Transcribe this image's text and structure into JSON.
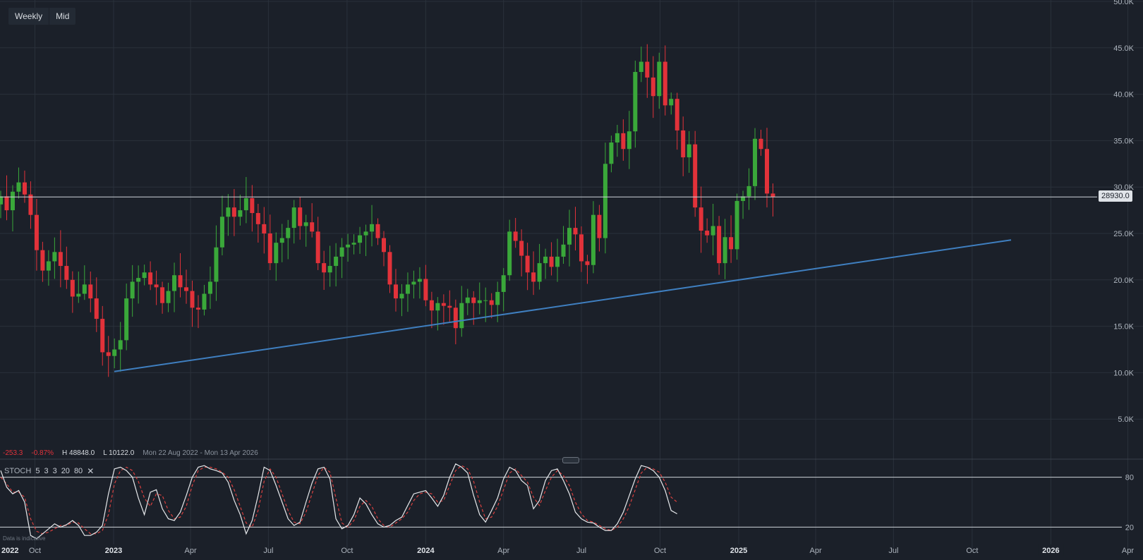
{
  "toolbar": {
    "interval_label": "Weekly",
    "price_type_label": "Mid"
  },
  "stats": {
    "change": "-253.3",
    "change_pct": "-0.87%",
    "high": "H 48848.0",
    "low": "L 10122.0",
    "range": "Mon 22 Aug 2022 - Mon 13 Apr 2026"
  },
  "current_price_label": "28930.0",
  "stoch": {
    "name": "STOCH",
    "params": [
      "5",
      "3",
      "3",
      "20",
      "80"
    ],
    "close_glyph": "✕"
  },
  "disclaimer": "Data is indicative",
  "colors": {
    "background": "#1b2029",
    "grid": "#2a313b",
    "up": "#3aa83a",
    "down": "#e2323a",
    "trendline": "#3f7fc0",
    "price_line": "#cfd4da",
    "stoch_k": "#e6e8eb",
    "stoch_d": "#d9403f"
  },
  "chart_data": [
    {
      "type": "candlestick",
      "title": "",
      "interval": "Weekly",
      "y_range": [
        0,
        50000
      ],
      "y_ticks": [
        "5.0K",
        "10.0K",
        "15.0K",
        "20.0K",
        "25.0K",
        "30.0K",
        "35.0K",
        "40.0K",
        "45.0K",
        "50.0K"
      ],
      "y_tick_values": [
        5000,
        10000,
        15000,
        20000,
        25000,
        30000,
        35000,
        40000,
        45000,
        50000
      ],
      "x_ticks": [
        "2022",
        "Oct",
        "2023",
        "Apr",
        "Jul",
        "Oct",
        "2024",
        "Apr",
        "Jul",
        "Oct",
        "2025",
        "Apr",
        "Jul",
        "Oct",
        "2026",
        "Apr"
      ],
      "x_tick_dates": [
        "2022-07-01",
        "2022-10-01",
        "2023-01-01",
        "2023-04-01",
        "2023-07-01",
        "2023-10-01",
        "2024-01-01",
        "2024-04-01",
        "2024-07-01",
        "2024-10-01",
        "2025-01-01",
        "2025-04-01",
        "2025-07-01",
        "2025-10-01",
        "2026-01-01",
        "2026-04-01"
      ],
      "x_range": [
        "2022-08-22",
        "2026-04-13"
      ],
      "current_price": 28930,
      "close_series": [
        29000,
        27500,
        29500,
        30500,
        29200,
        27000,
        23200,
        21000,
        22000,
        23000,
        21500,
        20000,
        18200,
        18500,
        19500,
        18000,
        15800,
        12200,
        11800,
        12500,
        13500,
        18000,
        19800,
        20200,
        20800,
        19500,
        19200,
        17500,
        18800,
        20500,
        19200,
        18800,
        17000,
        16800,
        18500,
        19800,
        23500,
        26800,
        27800,
        26800,
        27500,
        28800,
        27200,
        26000,
        25000,
        21800,
        24000,
        24500,
        25600,
        27800,
        25800,
        26200,
        25200,
        21800,
        20800,
        21500,
        22500,
        23500,
        23800,
        24000,
        24800,
        25200,
        26000,
        24500,
        23000,
        19500,
        18000,
        18500,
        19500,
        19800,
        20100,
        17800,
        16700,
        17500,
        17200,
        17000,
        14800,
        17500,
        18100,
        17500,
        17800,
        17800,
        17300,
        18700,
        20500,
        25200,
        24200,
        22600,
        20800,
        19800,
        21800,
        22500,
        21400,
        22500,
        23800,
        25600,
        24900,
        22000,
        21600,
        27000,
        24500,
        32500,
        34800,
        35800,
        34100,
        36000,
        42400,
        43500,
        41800,
        39800,
        43500,
        38800,
        39500,
        36100,
        33200,
        34600,
        27800,
        25300,
        24800,
        25800,
        21800,
        24600,
        23300,
        28500,
        29000,
        30100,
        35200,
        34100,
        29300,
        28930
      ],
      "series": [
        {
          "name": "STOCH %K (5,3)",
          "values": [
            88,
            68,
            60,
            64,
            50,
            10,
            6,
            12,
            18,
            24,
            20,
            23,
            28,
            22,
            10,
            10,
            14,
            22,
            60,
            90,
            92,
            88,
            80,
            55,
            35,
            62,
            65,
            42,
            30,
            28,
            38,
            58,
            80,
            92,
            94,
            90,
            88,
            85,
            74,
            52,
            35,
            12,
            28,
            58,
            92,
            88,
            70,
            50,
            30,
            22,
            26,
            50,
            73,
            90,
            92,
            78,
            30,
            18,
            22,
            35,
            55,
            48,
            35,
            24,
            20,
            22,
            28,
            32,
            46,
            60,
            62,
            64,
            55,
            45,
            58,
            80,
            96,
            92,
            85,
            58,
            35,
            26,
            40,
            55,
            78,
            92,
            88,
            76,
            70,
            42,
            52,
            76,
            88,
            90,
            76,
            60,
            38,
            30,
            26,
            25,
            20,
            16,
            16,
            24,
            38,
            58,
            78,
            94,
            92,
            88,
            80,
            64,
            40,
            36
          ]
        },
        {
          "name": "STOCH %D (3)",
          "values": [
            80,
            72,
            62,
            62,
            56,
            30,
            15,
            12,
            14,
            18,
            22,
            22,
            26,
            25,
            18,
            12,
            12,
            16,
            35,
            72,
            88,
            92,
            88,
            75,
            55,
            45,
            60,
            58,
            40,
            30,
            32,
            45,
            70,
            88,
            92,
            92,
            90,
            86,
            80,
            65,
            45,
            25,
            20,
            40,
            75,
            90,
            80,
            60,
            40,
            26,
            24,
            38,
            60,
            82,
            92,
            86,
            55,
            25,
            20,
            28,
            45,
            52,
            45,
            30,
            22,
            20,
            25,
            30,
            38,
            52,
            60,
            62,
            60,
            50,
            52,
            70,
            88,
            94,
            90,
            75,
            50,
            30,
            32,
            45,
            65,
            85,
            90,
            82,
            74,
            56,
            46,
            64,
            80,
            88,
            82,
            70,
            50,
            36,
            28,
            26,
            22,
            18,
            16,
            20,
            30,
            45,
            65,
            85,
            92,
            90,
            86,
            74,
            56,
            50
          ]
        }
      ],
      "stoch_y_range": [
        0,
        100
      ],
      "stoch_ticks": [
        "20",
        "80"
      ],
      "stoch_tick_values": [
        20,
        80
      ]
    }
  ]
}
